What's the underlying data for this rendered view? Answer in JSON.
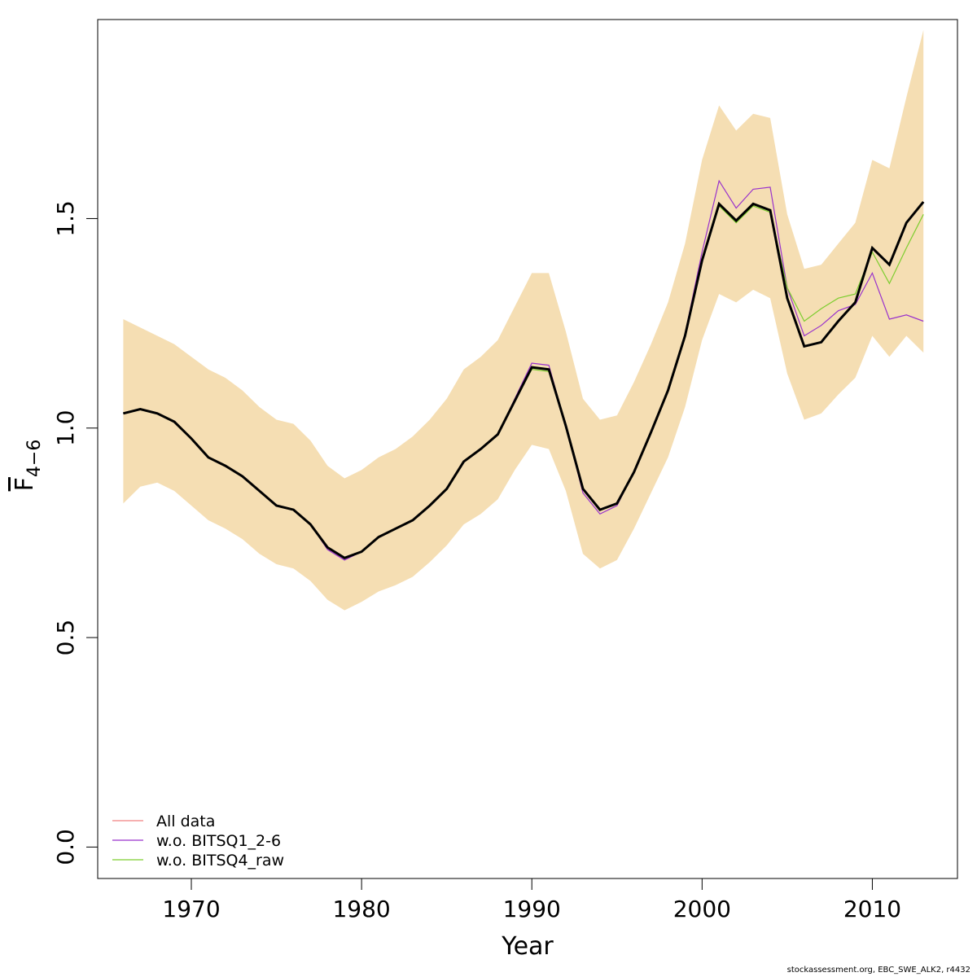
{
  "chart_data": {
    "type": "line",
    "xlabel": "Year",
    "ylabel_main": "F",
    "ylabel_sub": "4−6",
    "xlim": [
      1964.5,
      2015
    ],
    "ylim": [
      -0.075,
      1.975
    ],
    "xticks": [
      1970,
      1980,
      1990,
      2000,
      2010
    ],
    "yticks": [
      0.0,
      0.5,
      1.0,
      1.5
    ],
    "ytick_labels": [
      "0.0",
      "0.5",
      "1.0",
      "1.5"
    ],
    "x": [
      1966,
      1967,
      1968,
      1969,
      1970,
      1971,
      1972,
      1973,
      1974,
      1975,
      1976,
      1977,
      1978,
      1979,
      1980,
      1981,
      1982,
      1983,
      1984,
      1985,
      1986,
      1987,
      1988,
      1989,
      1990,
      1991,
      1992,
      1993,
      1994,
      1995,
      1996,
      1997,
      1998,
      1999,
      2000,
      2001,
      2002,
      2003,
      2004,
      2005,
      2006,
      2007,
      2008,
      2009,
      2010,
      2011,
      2012,
      2013
    ],
    "band": {
      "color": "#f5deb3",
      "upper": [
        1.26,
        1.24,
        1.22,
        1.2,
        1.17,
        1.14,
        1.12,
        1.09,
        1.05,
        1.02,
        1.01,
        0.97,
        0.91,
        0.88,
        0.9,
        0.93,
        0.95,
        0.98,
        1.02,
        1.07,
        1.14,
        1.17,
        1.21,
        1.29,
        1.37,
        1.37,
        1.23,
        1.07,
        1.02,
        1.03,
        1.11,
        1.2,
        1.3,
        1.44,
        1.64,
        1.77,
        1.71,
        1.75,
        1.74,
        1.51,
        1.38,
        1.39,
        1.44,
        1.49,
        1.64,
        1.62,
        1.79,
        1.95
      ],
      "lower": [
        0.82,
        0.86,
        0.87,
        0.85,
        0.815,
        0.78,
        0.76,
        0.735,
        0.7,
        0.675,
        0.665,
        0.635,
        0.59,
        0.565,
        0.585,
        0.61,
        0.625,
        0.645,
        0.68,
        0.72,
        0.77,
        0.795,
        0.83,
        0.9,
        0.96,
        0.95,
        0.85,
        0.7,
        0.665,
        0.685,
        0.76,
        0.845,
        0.93,
        1.05,
        1.21,
        1.32,
        1.3,
        1.33,
        1.31,
        1.13,
        1.02,
        1.035,
        1.08,
        1.12,
        1.22,
        1.17,
        1.22,
        1.18
      ]
    },
    "main_line": {
      "color": "#000000",
      "values": [
        1.035,
        1.045,
        1.035,
        1.015,
        0.975,
        0.93,
        0.91,
        0.885,
        0.85,
        0.815,
        0.805,
        0.77,
        0.715,
        0.69,
        0.705,
        0.74,
        0.76,
        0.78,
        0.815,
        0.855,
        0.92,
        0.95,
        0.985,
        1.065,
        1.145,
        1.14,
        1.005,
        0.855,
        0.805,
        0.82,
        0.895,
        0.99,
        1.09,
        1.22,
        1.4,
        1.535,
        1.495,
        1.535,
        1.52,
        1.31,
        1.195,
        1.205,
        1.255,
        1.3,
        1.43,
        1.39,
        1.49,
        1.54
      ]
    },
    "series": [
      {
        "name": "All data",
        "color": "#f08080",
        "values": [
          1.035,
          1.045,
          1.035,
          1.015,
          0.975,
          0.93,
          0.91,
          0.885,
          0.85,
          0.815,
          0.805,
          0.77,
          0.715,
          0.69,
          0.705,
          0.74,
          0.76,
          0.78,
          0.815,
          0.855,
          0.92,
          0.95,
          0.985,
          1.065,
          1.145,
          1.14,
          1.005,
          0.855,
          0.805,
          0.82,
          0.895,
          0.99,
          1.09,
          1.22,
          1.4,
          1.535,
          1.495,
          1.535,
          1.52,
          1.31,
          1.195,
          1.205,
          1.255,
          1.3,
          1.43,
          1.39,
          1.49,
          1.54
        ]
      },
      {
        "name": "w.o. BITSQ1_2-6",
        "color": "#9932cc",
        "values": [
          1.035,
          1.045,
          1.035,
          1.015,
          0.975,
          0.93,
          0.91,
          0.885,
          0.85,
          0.815,
          0.805,
          0.77,
          0.71,
          0.685,
          0.705,
          0.74,
          0.76,
          0.78,
          0.815,
          0.855,
          0.92,
          0.95,
          0.985,
          1.07,
          1.155,
          1.15,
          1.005,
          0.845,
          0.795,
          0.815,
          0.895,
          0.99,
          1.09,
          1.225,
          1.42,
          1.59,
          1.525,
          1.57,
          1.575,
          1.335,
          1.22,
          1.245,
          1.28,
          1.295,
          1.37,
          1.26,
          1.27,
          1.255
        ]
      },
      {
        "name": "w.o. BITSQ4_raw",
        "color": "#7ccd2e",
        "values": [
          1.035,
          1.045,
          1.035,
          1.015,
          0.975,
          0.93,
          0.91,
          0.885,
          0.85,
          0.815,
          0.805,
          0.77,
          0.715,
          0.69,
          0.705,
          0.74,
          0.76,
          0.78,
          0.815,
          0.855,
          0.92,
          0.95,
          0.985,
          1.065,
          1.14,
          1.135,
          1.005,
          0.855,
          0.805,
          0.82,
          0.895,
          0.99,
          1.09,
          1.22,
          1.4,
          1.53,
          1.49,
          1.53,
          1.515,
          1.335,
          1.255,
          1.285,
          1.31,
          1.32,
          1.42,
          1.345,
          1.43,
          1.51
        ]
      }
    ],
    "legend_position": "bottom-left",
    "grid": false
  },
  "credit": "stockassessment.org, EBC_SWE_ALK2, r4432"
}
